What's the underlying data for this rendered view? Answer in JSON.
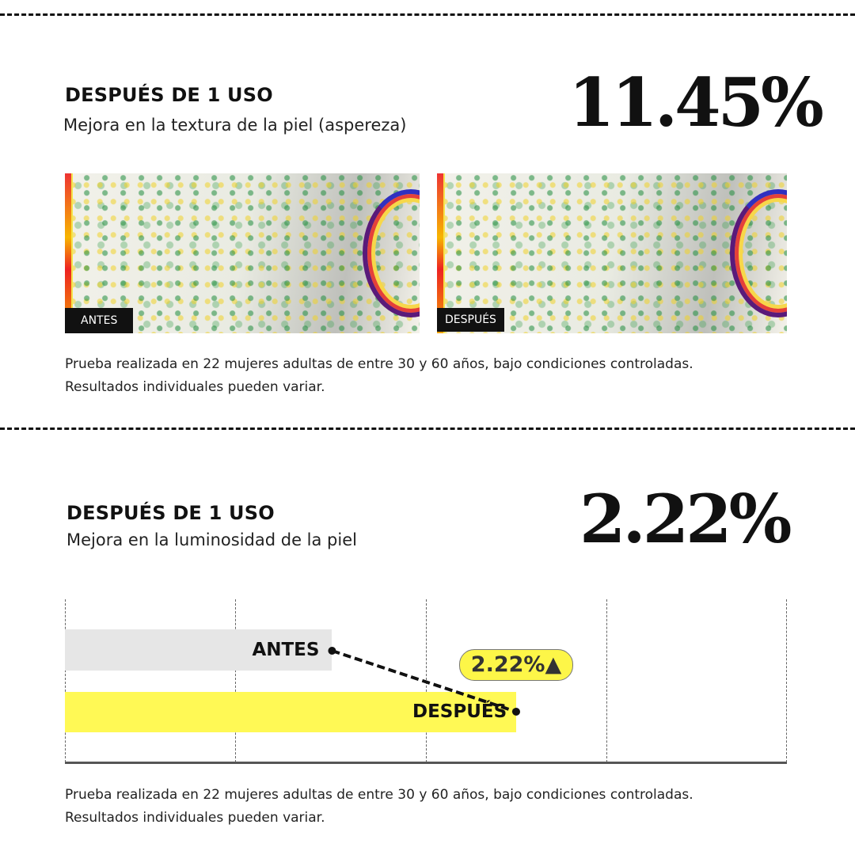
{
  "section1": {
    "heading": "DESPUÉS DE 1 USO",
    "subtitle": "Mejora en la textura de la piel (aspereza)",
    "stat": "11.45%",
    "images": [
      {
        "tag": "ANTES"
      },
      {
        "tag": "DESPUÉS"
      }
    ],
    "note_line1": "Prueba realizada en 22 mujeres adultas de entre 30 y 60 años, bajo condiciones controladas.",
    "note_line2": "Resultados individuales pueden variar."
  },
  "section2": {
    "heading": "DESPUÉS DE 1 USO",
    "subtitle": "Mejora en la luminosidad de la piel",
    "stat": "2.22%",
    "note_line1": "Prueba realizada en 22 mujeres adultas de entre 30 y 60 años, bajo condiciones controladas.",
    "note_line2": "Resultados individuales pueden variar."
  },
  "chart_data": {
    "type": "bar",
    "orientation": "horizontal",
    "categories": [
      "ANTES",
      "DESPUÉS"
    ],
    "values_fraction_of_axis": [
      0.37,
      0.625
    ],
    "colors": [
      "#e6e6e6",
      "#fff955"
    ],
    "annotation": "2.22%▲",
    "annotation_color": "#fdf648",
    "grid": true,
    "axis_ticks_printed": false
  }
}
